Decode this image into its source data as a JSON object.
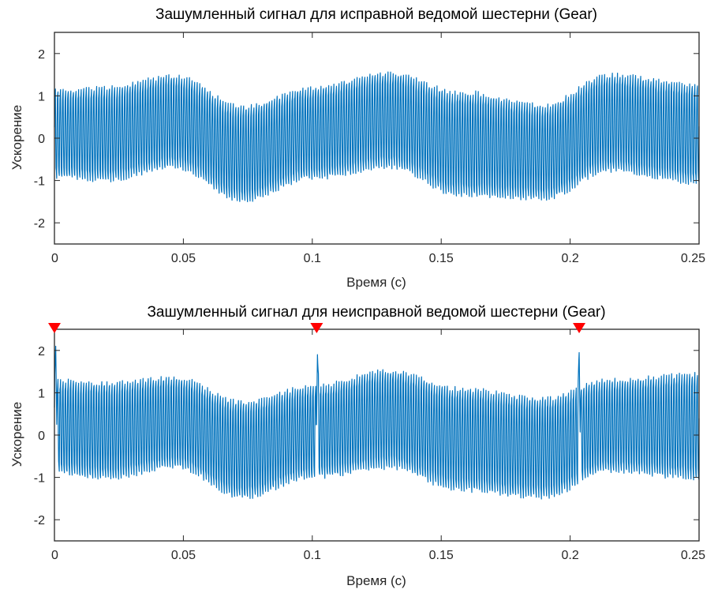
{
  "figure": {
    "colors": {
      "signal": "#0072BD",
      "marker": "#FF0000",
      "axes": "#262626",
      "background": "#FFFFFF"
    }
  },
  "chart_data": [
    {
      "type": "line",
      "title": "Зашумленный сигнал для исправной ведомой шестерни (Gear)",
      "xlabel": "Время (с)",
      "ylabel": "Ускорение",
      "xlim": [
        0,
        0.25
      ],
      "ylim": [
        -2.5,
        2.5
      ],
      "xticks": [
        0,
        0.05,
        0.1,
        0.15,
        0.2,
        0.25
      ],
      "xticklabels": [
        "0",
        "0.05",
        "0.1",
        "0.15",
        "0.2",
        "0.25"
      ],
      "yticks": [
        -2,
        -1,
        0,
        1,
        2
      ],
      "yticklabels": [
        "-2",
        "-1",
        "0",
        "1",
        "2"
      ],
      "grid": false,
      "legend": "none",
      "series": [
        {
          "color": "#0072BD",
          "envelope": {
            "x": [
              0,
              0.02,
              0.047,
              0.073,
              0.1,
              0.13,
              0.157,
              0.19,
              0.215,
              0.25
            ],
            "upper": [
              1.5,
              1.6,
              1.88,
              1.15,
              1.6,
              1.95,
              1.55,
              1.2,
              1.92,
              1.7
            ],
            "lower": [
              -1.3,
              -1.4,
              -1.1,
              -1.9,
              -1.35,
              -1.1,
              -1.8,
              -1.85,
              -1.2,
              -1.5
            ]
          }
        }
      ],
      "markers": []
    },
    {
      "type": "line",
      "title": "Зашумленный сигнал для неисправной ведомой шестерни (Gear)",
      "xlabel": "Время (с)",
      "ylabel": "Ускорение",
      "xlim": [
        0,
        0.25
      ],
      "ylim": [
        -2.5,
        2.5
      ],
      "xticks": [
        0,
        0.05,
        0.1,
        0.15,
        0.2,
        0.25
      ],
      "xticklabels": [
        "0",
        "0.05",
        "0.1",
        "0.15",
        "0.2",
        "0.25"
      ],
      "yticks": [
        -2,
        -1,
        0,
        1,
        2
      ],
      "yticklabels": [
        "-2",
        "-1",
        "0",
        "1",
        "2"
      ],
      "grid": false,
      "legend": "none",
      "series": [
        {
          "color": "#0072BD",
          "envelope": {
            "x": [
              0,
              0.02,
              0.047,
              0.073,
              0.1,
              0.13,
              0.157,
              0.19,
              0.215,
              0.25
            ],
            "upper": [
              1.7,
              1.65,
              1.75,
              1.2,
              1.55,
              1.95,
              1.55,
              1.3,
              1.7,
              1.9
            ],
            "lower": [
              -1.3,
              -1.45,
              -1.15,
              -1.9,
              -1.4,
              -1.2,
              -1.75,
              -1.9,
              -1.25,
              -1.5
            ]
          },
          "impulses": [
            {
              "x": 0.0005,
              "value": 2.1
            },
            {
              "x": 0.102,
              "value": 1.9
            },
            {
              "x": 0.2035,
              "value": 1.95
            }
          ]
        }
      ],
      "markers": [
        {
          "x": 0,
          "shape": "triangle-down",
          "color": "#FF0000"
        },
        {
          "x": 0.1017,
          "shape": "triangle-down",
          "color": "#FF0000"
        },
        {
          "x": 0.2035,
          "shape": "triangle-down",
          "color": "#FF0000"
        }
      ]
    }
  ]
}
